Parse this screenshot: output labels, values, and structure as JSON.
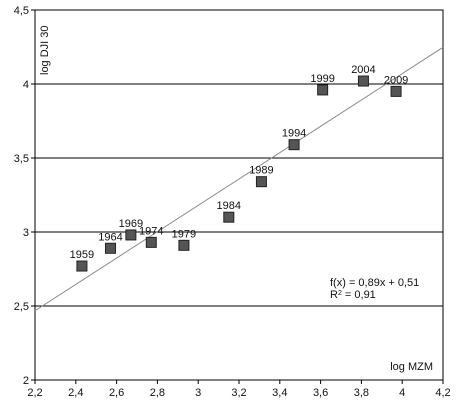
{
  "chart_data": {
    "type": "scatter",
    "title": "",
    "xlabel": "log MZM",
    "ylabel": "log DJI 30",
    "xlim": [
      2.2,
      4.2
    ],
    "ylim": [
      2,
      4.5
    ],
    "x_ticks": [
      2.2,
      2.4,
      2.6,
      2.8,
      3.0,
      3.2,
      3.4,
      3.6,
      3.8,
      4.0,
      4.2
    ],
    "x_tick_labels": [
      "2,2",
      "2,4",
      "2,6",
      "2,8",
      "3",
      "3,2",
      "3,4",
      "3,6",
      "3,8",
      "4",
      "4,2"
    ],
    "y_ticks": [
      2,
      2.5,
      3,
      3.5,
      4,
      4.5
    ],
    "y_tick_labels": [
      "2",
      "2,5",
      "3",
      "3,5",
      "4",
      "4,5"
    ],
    "grid": {
      "horizontal": true,
      "vertical": false
    },
    "marker": {
      "shape": "square",
      "fill": "#555555",
      "stroke": "#222222"
    },
    "points": [
      {
        "label": "1959",
        "x": 2.43,
        "y": 2.77
      },
      {
        "label": "1964",
        "x": 2.57,
        "y": 2.89
      },
      {
        "label": "1969",
        "x": 2.67,
        "y": 2.98
      },
      {
        "label": "1974",
        "x": 2.77,
        "y": 2.93
      },
      {
        "label": "1979",
        "x": 2.93,
        "y": 2.91
      },
      {
        "label": "1984",
        "x": 3.15,
        "y": 3.1
      },
      {
        "label": "1989",
        "x": 3.31,
        "y": 3.34
      },
      {
        "label": "1994",
        "x": 3.47,
        "y": 3.59
      },
      {
        "label": "1999",
        "x": 3.61,
        "y": 3.96
      },
      {
        "label": "2004",
        "x": 3.81,
        "y": 4.02
      },
      {
        "label": "2009",
        "x": 3.97,
        "y": 3.95
      }
    ],
    "trendline": {
      "slope": 0.89,
      "intercept": 0.51,
      "x_range": [
        2.2,
        4.2
      ],
      "color": "#888888"
    },
    "annotations": {
      "equation": "f(x) = 0,89x + 0,51",
      "r2_prefix": "R",
      "r2_sup": "2",
      "r2_suffix": " = 0,91"
    }
  }
}
